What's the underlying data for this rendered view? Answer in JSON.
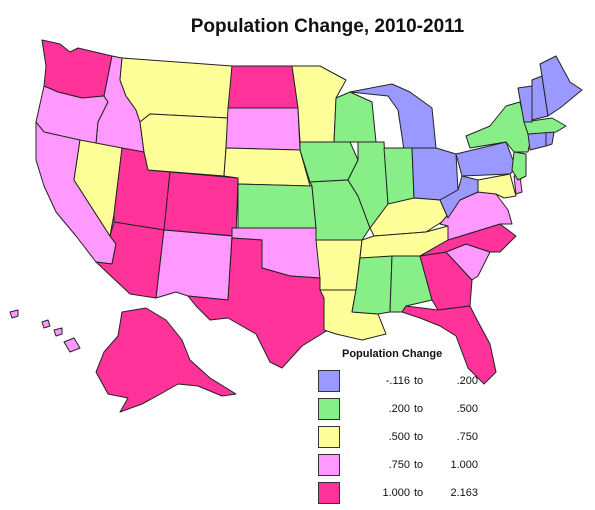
{
  "title": "Population Change, 2010-2011",
  "colors": {
    "c1": "#9999ff",
    "c2": "#88ee88",
    "c3": "#ffff99",
    "c4": "#ff99ff",
    "c5": "#ff3399"
  },
  "legend": {
    "title": "Population Change",
    "items": [
      {
        "low": "-.116",
        "to": "to",
        "high": ".200",
        "color": "#9999ff"
      },
      {
        "low": ".200",
        "to": "to",
        "high": ".500",
        "color": "#88ee88"
      },
      {
        "low": ".500",
        "to": "to",
        "high": ".750",
        "color": "#ffff99"
      },
      {
        "low": ".750",
        "to": "to",
        "high": "1.000",
        "color": "#ff99ff"
      },
      {
        "low": "1.000",
        "to": "to",
        "high": "2.163",
        "color": "#ff3399"
      }
    ]
  },
  "states": {
    "WA": "c5",
    "OR": "c4",
    "CA": "c4",
    "ID": "c4",
    "NV": "c3",
    "UT": "c5",
    "AZ": "c5",
    "MT": "c3",
    "WY": "c3",
    "CO": "c5",
    "NM": "c4",
    "ND": "c5",
    "SD": "c4",
    "NE": "c3",
    "KS": "c2",
    "OK": "c4",
    "TX": "c5",
    "MN": "c3",
    "IA": "c2",
    "MO": "c2",
    "AR": "c3",
    "LA": "c3",
    "WI": "c2",
    "IL": "c2",
    "MI": "c1",
    "IN": "c2",
    "OH": "c1",
    "KY": "c3",
    "TN": "c3",
    "MS": "c2",
    "AL": "c2",
    "GA": "c5",
    "FL": "c5",
    "SC": "c4",
    "NC": "c5",
    "VA": "c4",
    "WV": "c1",
    "MD": "c3",
    "DE": "c4",
    "PA": "c1",
    "NJ": "c2",
    "NY": "c2",
    "CT": "c1",
    "RI": "c1",
    "MA": "c2",
    "VT": "c1",
    "NH": "c1",
    "ME": "c1",
    "AK": "c5",
    "HI": "c4"
  }
}
